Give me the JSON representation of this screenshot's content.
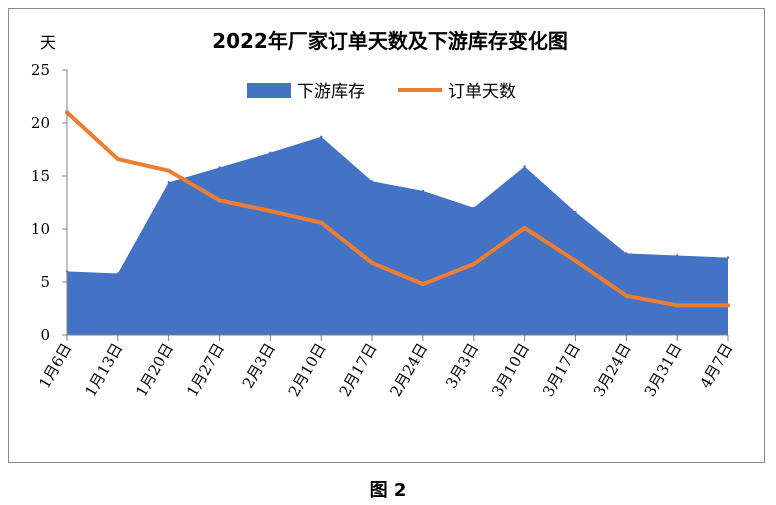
{
  "caption": "图 2",
  "chart_data": {
    "type": "area+line",
    "title": "2022年厂家订单天数及下游库存变化图",
    "y_unit_label": "天",
    "ylim": [
      0,
      25
    ],
    "yticks": [
      "0",
      "5",
      "10",
      "15",
      "20",
      "25"
    ],
    "categories": [
      "1月6日",
      "1月13日",
      "1月20日",
      "1月27日",
      "2月3日",
      "2月10日",
      "2月17日",
      "2月24日",
      "3月3日",
      "3月10日",
      "3月17日",
      "3月24日",
      "3月31日",
      "4月7日"
    ],
    "series": [
      {
        "name": "下游库存",
        "type": "area",
        "color": "#4472C4",
        "values": [
          6.0,
          5.8,
          14.4,
          15.8,
          17.2,
          18.7,
          14.5,
          13.6,
          12.0,
          15.9,
          11.6,
          7.7,
          7.5,
          7.3
        ]
      },
      {
        "name": "订单天数",
        "type": "line",
        "color": "#ED7D31",
        "values": [
          21.0,
          16.6,
          15.5,
          12.7,
          11.7,
          10.6,
          6.8,
          4.8,
          6.7,
          10.1,
          7.0,
          3.7,
          2.8,
          2.8
        ]
      }
    ],
    "legend_position": "top-center",
    "grid": false
  }
}
